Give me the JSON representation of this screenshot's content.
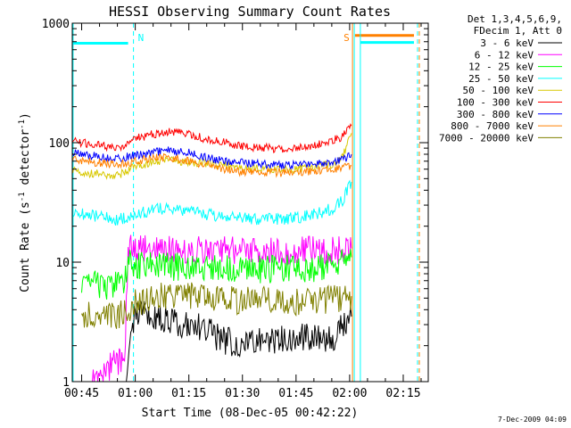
{
  "chart_data": {
    "type": "line",
    "title": "HESSI Observing Summary Count Rates",
    "xlabel": "Start Time (08-Dec-05 00:42:22)",
    "ylabel": "Count Rate (s",
    "ylabel_sup1": "-1",
    "ylabel_mid": " detector",
    "ylabel_sup2": "-1",
    "ylabel_end": ")",
    "yscale": "log",
    "ylim": [
      1,
      1000
    ],
    "xlim_minutes": [
      42.37,
      142
    ],
    "x_ticks": [
      {
        "t": 45,
        "label": "00:45"
      },
      {
        "t": 60,
        "label": "01:00"
      },
      {
        "t": 75,
        "label": "01:15"
      },
      {
        "t": 90,
        "label": "01:30"
      },
      {
        "t": 105,
        "label": "01:45"
      },
      {
        "t": 120,
        "label": "02:00"
      },
      {
        "t": 135,
        "label": "02:15"
      }
    ],
    "y_ticks": [
      {
        "v": 1,
        "label": "1"
      },
      {
        "v": 10,
        "label": "10"
      },
      {
        "v": 100,
        "label": "100"
      },
      {
        "v": 1000,
        "label": "1000"
      }
    ],
    "legend_lines": [
      "Det 1,3,4,5,6,9,",
      "FDecim 1, Att 0"
    ],
    "legend_placement": "right",
    "series": [
      {
        "name": "3 - 6 keV",
        "color": "#000000",
        "t": [
          57.5,
          60,
          65,
          70,
          75,
          80,
          85,
          90,
          95,
          100,
          105,
          110,
          115,
          120.5
        ],
        "values": [
          1.2,
          4,
          3.5,
          3.2,
          3,
          2.7,
          2.2,
          2.1,
          2.3,
          2.2,
          2.4,
          2.3,
          2.3,
          3.5
        ]
      },
      {
        "name": "6 - 12 keV",
        "color": "#ff00ff",
        "t": [
          48,
          55,
          57,
          58,
          60,
          65,
          70,
          75,
          80,
          85,
          90,
          95,
          100,
          105,
          110,
          115,
          120.5
        ],
        "values": [
          1,
          1.5,
          1.3,
          13,
          13,
          13,
          12.8,
          12.8,
          12.5,
          12.5,
          12.3,
          12.3,
          12.3,
          12.5,
          12.5,
          12.5,
          13
        ]
      },
      {
        "name": "12 - 25 keV",
        "color": "#00ff00",
        "t": [
          45,
          50,
          55,
          57,
          58,
          60,
          65,
          70,
          75,
          80,
          85,
          90,
          95,
          100,
          105,
          110,
          115,
          120.5
        ],
        "values": [
          6.8,
          6.4,
          6.4,
          6.5,
          9.8,
          9.6,
          9.3,
          9.2,
          9.1,
          8.9,
          8.8,
          8.7,
          8.7,
          8.8,
          8.8,
          8.9,
          9.2,
          11
        ]
      },
      {
        "name": "25 - 50 keV",
        "color": "#00ffff",
        "t": [
          42.5,
          45,
          50,
          55,
          60,
          65,
          70,
          75,
          80,
          85,
          90,
          95,
          100,
          105,
          110,
          115,
          118,
          120.5
        ],
        "values": [
          26,
          25.5,
          24,
          22.5,
          25,
          27.5,
          28.5,
          26.5,
          25,
          24,
          23.2,
          22.8,
          23,
          23.5,
          25,
          28,
          33,
          47
        ]
      },
      {
        "name": "50 - 100 keV",
        "color": "#d8c800",
        "t": [
          42.5,
          45,
          50,
          55,
          60,
          65,
          70,
          75,
          80,
          85,
          90,
          95,
          100,
          105,
          110,
          115,
          118,
          120.5
        ],
        "values": [
          58,
          56,
          55,
          53,
          63,
          68,
          71,
          69,
          67,
          65,
          62,
          61,
          60,
          60,
          62,
          66,
          75,
          120
        ]
      },
      {
        "name": "100 - 300 keV",
        "color": "#ff0000",
        "t": [
          42.5,
          45,
          50,
          55,
          60,
          65,
          70,
          75,
          80,
          85,
          90,
          95,
          100,
          105,
          110,
          115,
          118,
          120.5
        ],
        "values": [
          105,
          100,
          95,
          90,
          108,
          118,
          124,
          118,
          107,
          100,
          94,
          91,
          89,
          90,
          94,
          103,
          113,
          138
        ]
      },
      {
        "name": "300 - 800 keV",
        "color": "#0000ff",
        "t": [
          42.5,
          45,
          50,
          55,
          60,
          65,
          70,
          75,
          80,
          85,
          90,
          95,
          100,
          105,
          110,
          115,
          118,
          120.5
        ],
        "values": [
          83,
          80,
          77,
          74,
          78,
          83,
          86,
          82,
          75,
          70,
          68,
          66,
          65,
          65,
          66,
          68,
          72,
          80
        ]
      },
      {
        "name": "800 - 7000 keV",
        "color": "#ff8000",
        "t": [
          42.5,
          45,
          50,
          55,
          60,
          65,
          70,
          75,
          80,
          85,
          90,
          95,
          100,
          105,
          110,
          115,
          118,
          120.5
        ],
        "values": [
          72,
          70,
          68,
          66,
          70,
          74,
          75,
          71,
          65,
          60,
          57,
          56,
          56,
          57,
          58,
          60,
          62,
          64
        ]
      },
      {
        "name": "7000 - 20000 keV",
        "color": "#808000",
        "t": [
          45,
          50,
          55,
          57.5,
          58,
          60,
          65,
          70,
          75,
          80,
          85,
          90,
          95,
          100,
          105,
          110,
          115,
          120.5
        ],
        "values": [
          3.7,
          3.7,
          3.6,
          3.7,
          3.9,
          4.5,
          5.2,
          5.3,
          5.2,
          4.9,
          4.8,
          4.8,
          4.8,
          4.8,
          4.7,
          4.8,
          4.9,
          5.2
        ]
      }
    ],
    "flag_bars": [
      {
        "t0": 42.37,
        "t1": 58,
        "value": 680,
        "color": "#00ffff"
      },
      {
        "t0": 121.5,
        "t1": 138,
        "value": 790,
        "color": "#ff8000"
      },
      {
        "t0": 123,
        "t1": 138,
        "value": 690,
        "color": "#00ffff"
      }
    ],
    "markers": [
      {
        "t": 59.5,
        "label": "N",
        "color": "#00ffff",
        "style": "dashed"
      },
      {
        "t": 120.8,
        "label": "S",
        "color": "#ff8000",
        "style": "solid"
      },
      {
        "t": 121.3,
        "label": "",
        "color": "#00ffff",
        "style": "solid"
      },
      {
        "t": 123,
        "label": "",
        "color": "#00ffff",
        "style": "solid"
      },
      {
        "t": 139,
        "label": "",
        "color": "#00ffff",
        "style": "dashed"
      },
      {
        "t": 139.5,
        "label": "",
        "color": "#ff8000",
        "style": "dashed"
      },
      {
        "t": 42.6,
        "label": "",
        "color": "#00ffff",
        "style": "solid"
      }
    ]
  },
  "footer_date": "7-Dec-2009 04:09"
}
